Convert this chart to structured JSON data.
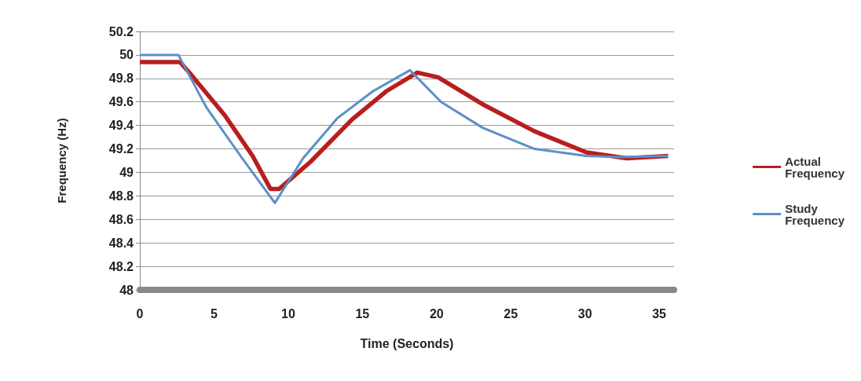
{
  "chart_data": {
    "type": "line",
    "xlabel": "Time (Seconds)",
    "ylabel": "Frequency (Hz)",
    "xlim": [
      0,
      36
    ],
    "xticks": [
      0,
      5,
      10,
      15,
      20,
      25,
      30,
      35
    ],
    "ylim": [
      48,
      50.2
    ],
    "yticks": [
      48,
      48.2,
      48.4,
      48.6,
      48.8,
      49,
      49.2,
      49.4,
      49.6,
      49.8,
      50,
      50.2
    ],
    "grid": "y",
    "legend": "right",
    "marker": "none",
    "line_style": "solid",
    "series": [
      {
        "name": "Actual Frequency",
        "color": "#b81e1e",
        "x": [
          0,
          2.7,
          3.4,
          5.7,
          7.6,
          8.8,
          9.4,
          11.5,
          14.3,
          16.6,
          18.7,
          20.1,
          23.1,
          26.6,
          30.1,
          32.8,
          35.6
        ],
        "values": [
          49.94,
          49.94,
          49.84,
          49.49,
          49.14,
          48.86,
          48.86,
          49.09,
          49.45,
          49.69,
          49.85,
          49.81,
          49.58,
          49.35,
          49.17,
          49.12,
          49.14
        ]
      },
      {
        "name": "Study Frequency",
        "color": "#5b8fc9",
        "x": [
          0,
          2.6,
          4.5,
          6.9,
          9.1,
          11.0,
          13.3,
          15.7,
          18.2,
          20.3,
          23.1,
          26.6,
          30.1,
          32.4,
          35.6
        ],
        "values": [
          50.0,
          50.0,
          49.55,
          49.12,
          48.74,
          49.12,
          49.46,
          49.69,
          49.87,
          49.6,
          49.38,
          49.2,
          49.14,
          49.13,
          49.14
        ]
      }
    ]
  }
}
